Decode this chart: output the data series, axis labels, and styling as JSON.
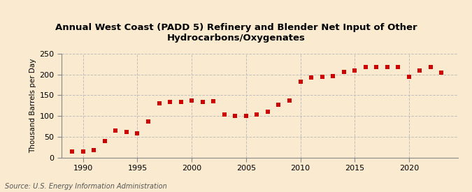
{
  "title": "Annual West Coast (PADD 5) Refinery and Blender Net Input of Other\nHydrocarbons/Oxygenates",
  "ylabel": "Thousand Barrels per Day",
  "source": "Source: U.S. Energy Information Administration",
  "background_color": "#faebd0",
  "plot_bg_color": "#faebd0",
  "marker_color": "#cc0000",
  "grid_color": "#bbbbbb",
  "spine_color": "#888888",
  "xlim": [
    1988.0,
    2024.5
  ],
  "ylim": [
    0,
    250
  ],
  "yticks": [
    0,
    50,
    100,
    150,
    200,
    250
  ],
  "xticks": [
    1990,
    1995,
    2000,
    2005,
    2010,
    2015,
    2020
  ],
  "years": [
    1989,
    1990,
    1991,
    1992,
    1993,
    1994,
    1995,
    1996,
    1997,
    1998,
    1999,
    2000,
    2001,
    2002,
    2003,
    2004,
    2005,
    2006,
    2007,
    2008,
    2009,
    2010,
    2011,
    2012,
    2013,
    2014,
    2015,
    2016,
    2017,
    2018,
    2019,
    2020,
    2021,
    2022,
    2023
  ],
  "values": [
    14,
    14,
    18,
    40,
    65,
    62,
    58,
    86,
    130,
    133,
    133,
    137,
    133,
    136,
    104,
    100,
    101,
    104,
    110,
    127,
    138,
    183,
    192,
    195,
    196,
    207,
    210,
    218,
    218,
    218,
    218,
    195,
    210,
    218,
    205
  ],
  "title_fontsize": 9.5,
  "ylabel_fontsize": 7.5,
  "tick_fontsize": 8,
  "source_fontsize": 7
}
